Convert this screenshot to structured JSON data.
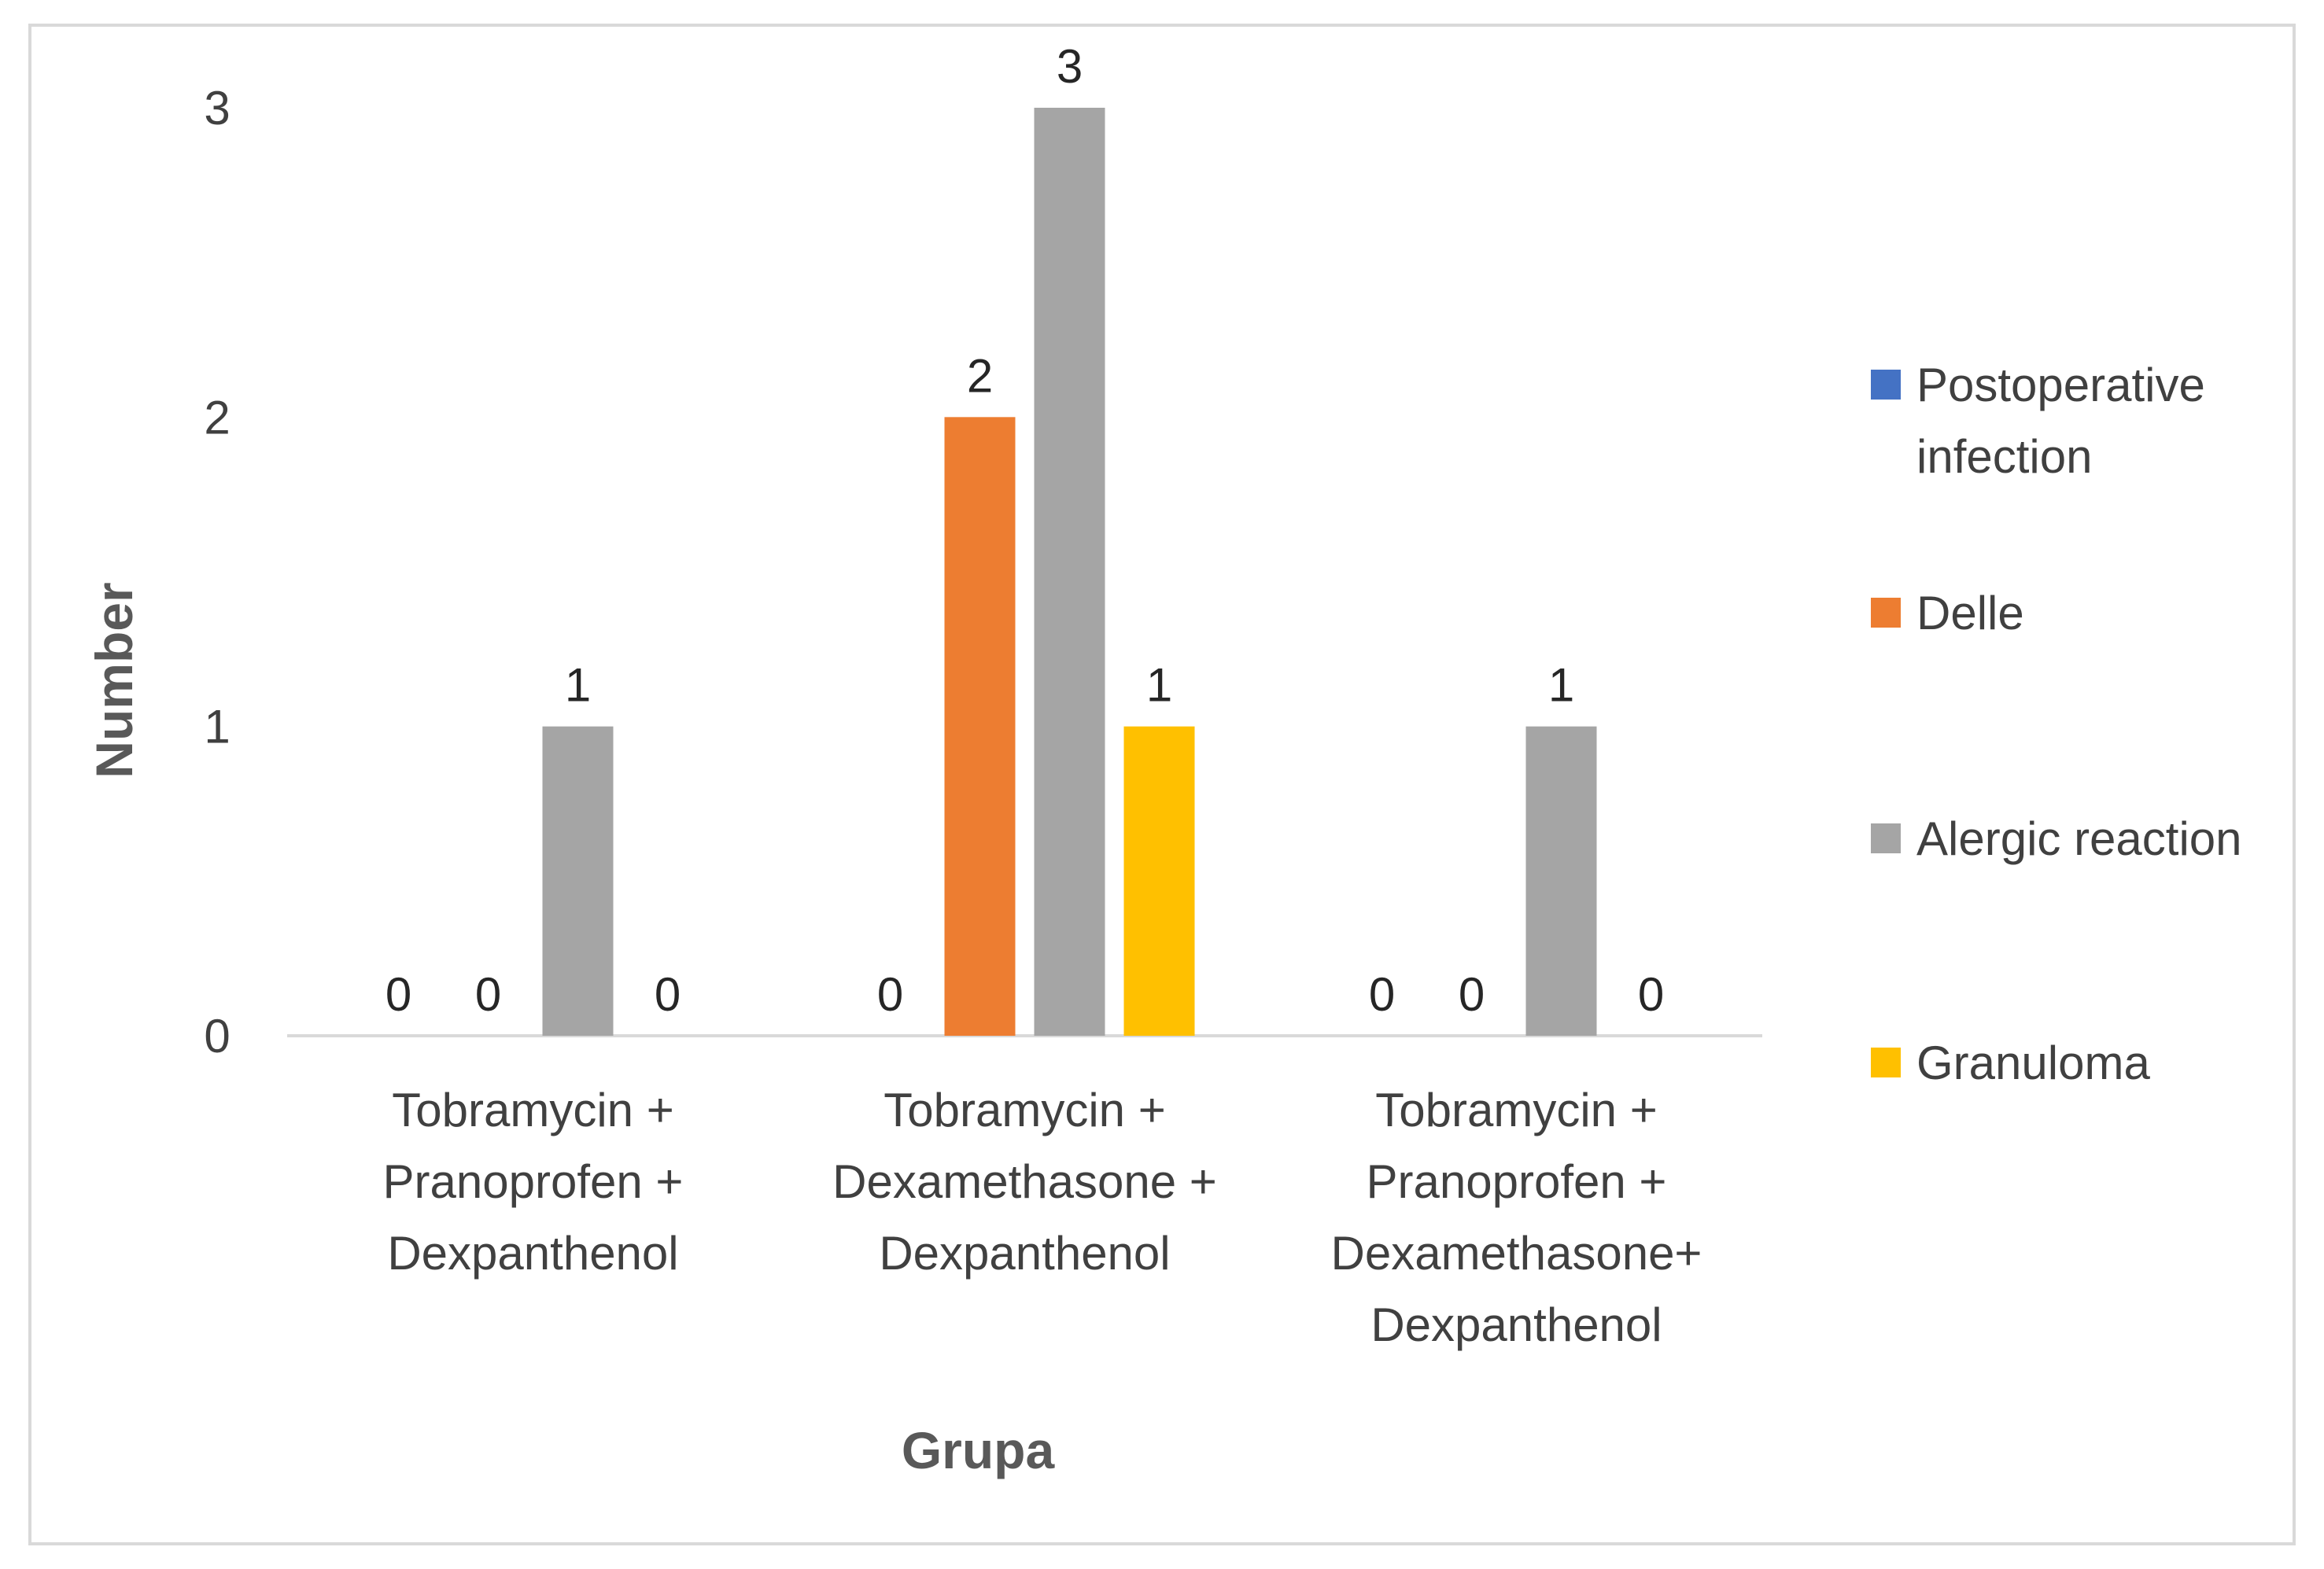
{
  "chart_data": {
    "type": "bar",
    "title": "",
    "xlabel": "Grupa",
    "ylabel": "Number",
    "ylim": [
      0,
      3
    ],
    "yticks": [
      0,
      1,
      2,
      3
    ],
    "grid": false,
    "legend_position": "right",
    "categories": [
      [
        "Tobramycin +",
        "Pranoprofen +",
        "Dexpanthenol"
      ],
      [
        "Tobramycin +",
        "Dexamethasone +",
        "Dexpanthenol"
      ],
      [
        "Tobramycin +",
        "Pranoprofen +",
        "Dexamethasone+",
        "Dexpanthenol"
      ]
    ],
    "series": [
      {
        "name": [
          "Postoperative",
          "infection"
        ],
        "color": "#4472c4",
        "values": [
          0,
          0,
          0
        ]
      },
      {
        "name": [
          "Delle"
        ],
        "color": "#ed7d31",
        "values": [
          0,
          2,
          0
        ]
      },
      {
        "name": [
          "Alergic reaction"
        ],
        "color": "#a5a5a5",
        "values": [
          1,
          3,
          1
        ]
      },
      {
        "name": [
          "Granuloma"
        ],
        "color": "#ffc000",
        "values": [
          0,
          1,
          0
        ]
      }
    ]
  },
  "colors": {
    "axis_line": "#d9d9d9",
    "frame_border": "#d9d9d9"
  }
}
